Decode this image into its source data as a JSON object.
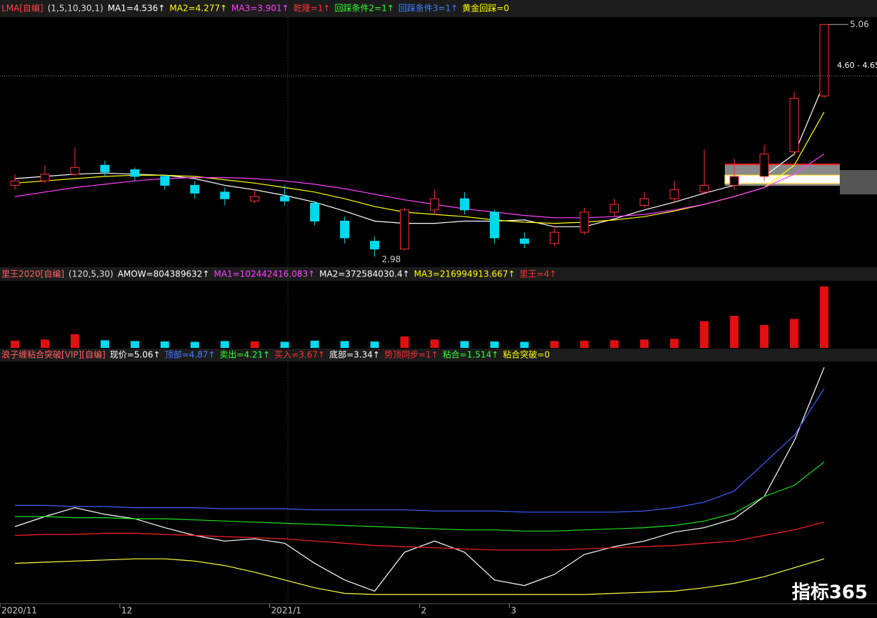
{
  "chart_data": [
    {
      "type": "candlestick",
      "indicator": "LMA[自编]",
      "params": "(1,5,10,30,1)",
      "readouts": [
        {
          "text": "MA1=4.536↑",
          "color": "#ffffff"
        },
        {
          "text": "MA2=4.277↑",
          "color": "#ffff00"
        },
        {
          "text": "MA3=3.901↑",
          "color": "#ff40ff"
        },
        {
          "text": "乾隆=1↑",
          "color": "#ff3030"
        },
        {
          "text": "回踩条件2=1↑",
          "color": "#30ff30"
        },
        {
          "text": "回踩条件3=1↑",
          "color": "#4080ff"
        },
        {
          "text": "黄金回踩=0",
          "color": "#ffff00"
        }
      ],
      "ylim": [
        2.9,
        5.1
      ],
      "open": [
        3.62,
        3.66,
        3.72,
        3.8,
        3.76,
        3.7,
        3.62,
        3.56,
        3.48,
        3.52,
        3.46,
        3.3,
        3.12,
        3.05,
        3.4,
        3.5,
        3.38,
        3.14,
        3.1,
        3.2,
        3.38,
        3.44,
        3.5,
        3.56,
        3.62,
        3.7,
        3.92,
        4.42
      ],
      "high": [
        3.72,
        3.8,
        3.96,
        3.84,
        3.78,
        3.72,
        3.66,
        3.6,
        3.58,
        3.62,
        3.48,
        3.34,
        3.16,
        3.42,
        3.58,
        3.56,
        3.4,
        3.2,
        3.24,
        3.42,
        3.5,
        3.56,
        3.66,
        3.94,
        3.86,
        3.98,
        4.46,
        5.06
      ],
      "low": [
        3.58,
        3.64,
        3.7,
        3.7,
        3.66,
        3.58,
        3.5,
        3.44,
        3.46,
        3.44,
        3.26,
        3.1,
        2.98,
        3.04,
        3.36,
        3.36,
        3.1,
        3.06,
        3.08,
        3.18,
        3.34,
        3.42,
        3.46,
        3.54,
        3.58,
        3.66,
        3.88,
        4.4
      ],
      "close": [
        3.66,
        3.72,
        3.78,
        3.74,
        3.7,
        3.62,
        3.55,
        3.5,
        3.52,
        3.48,
        3.3,
        3.15,
        3.05,
        3.4,
        3.5,
        3.4,
        3.15,
        3.1,
        3.2,
        3.38,
        3.45,
        3.5,
        3.58,
        3.62,
        3.7,
        3.9,
        4.4,
        5.06
      ],
      "lines": [
        {
          "color": "#ffffff",
          "values": [
            3.68,
            3.7,
            3.72,
            3.73,
            3.72,
            3.71,
            3.68,
            3.62,
            3.58,
            3.53,
            3.47,
            3.39,
            3.3,
            3.28,
            3.28,
            3.3,
            3.3,
            3.31,
            3.25,
            3.25,
            3.32,
            3.4,
            3.47,
            3.55,
            3.62,
            3.7,
            3.9,
            4.536
          ]
        },
        {
          "color": "#ffff00",
          "values": [
            3.64,
            3.66,
            3.68,
            3.7,
            3.71,
            3.71,
            3.7,
            3.67,
            3.64,
            3.6,
            3.56,
            3.5,
            3.43,
            3.38,
            3.36,
            3.34,
            3.31,
            3.29,
            3.28,
            3.29,
            3.31,
            3.34,
            3.39,
            3.45,
            3.52,
            3.6,
            3.8,
            4.277
          ]
        },
        {
          "color": "#ff40ff",
          "values": [
            3.52,
            3.56,
            3.6,
            3.63,
            3.66,
            3.68,
            3.69,
            3.69,
            3.68,
            3.66,
            3.63,
            3.59,
            3.54,
            3.49,
            3.45,
            3.41,
            3.38,
            3.35,
            3.33,
            3.33,
            3.34,
            3.36,
            3.4,
            3.45,
            3.52,
            3.6,
            3.72,
            3.901
          ]
        }
      ],
      "annotations": [
        {
          "value": 2.98,
          "label": "2.98"
        },
        {
          "value": 5.06,
          "label": "5.06"
        },
        {
          "value": 4.6,
          "label": "4.60 - 4.65"
        }
      ]
    },
    {
      "type": "bar",
      "indicator": "里王2020[自编]",
      "params": "(120,5,30)",
      "readouts": [
        {
          "text": "AMOW=804389632↑",
          "color": "#ffffff"
        },
        {
          "text": "MA1=102442416.083↑",
          "color": "#ff40ff"
        },
        {
          "text": "MA2=372584030.4↑",
          "color": "#ffffff"
        },
        {
          "text": "MA3=216994913.667↑",
          "color": "#ffff00"
        },
        {
          "text": "里王=4↑",
          "color": "#ff3030"
        }
      ],
      "ylim": [
        0,
        850000000
      ],
      "values": [
        95000000,
        110000000,
        180000000,
        100000000,
        90000000,
        85000000,
        80000000,
        90000000,
        85000000,
        80000000,
        95000000,
        90000000,
        85000000,
        150000000,
        110000000,
        90000000,
        85000000,
        80000000,
        90000000,
        95000000,
        100000000,
        110000000,
        120000000,
        350000000,
        420000000,
        300000000,
        380000000,
        804389632
      ]
    },
    {
      "type": "line",
      "indicator": "浪子缠粘合突破[VIP][自编]",
      "readouts": [
        {
          "text": "现价=5.06↑",
          "color": "#ffffff"
        },
        {
          "text": "顶部=4.87↑",
          "color": "#4080ff"
        },
        {
          "text": "卖出=4.21↑",
          "color": "#30ff30"
        },
        {
          "text": "买入=3.67↑",
          "color": "#ff3030"
        },
        {
          "text": "底部=3.34↑",
          "color": "#ffffff"
        },
        {
          "text": "势顶同步=1↑",
          "color": "#ff3030"
        },
        {
          "text": "粘合=1.514↑",
          "color": "#30ff30"
        },
        {
          "text": "粘合突破=0",
          "color": "#ffff00"
        }
      ],
      "ylim": [
        2.95,
        5.1
      ],
      "categories": [
        "2020/11",
        null,
        null,
        null,
        "12",
        null,
        null,
        null,
        null,
        "2021/1",
        null,
        null,
        null,
        null,
        "2",
        null,
        null,
        "3",
        null,
        null,
        null,
        null,
        null,
        null,
        null,
        null,
        null,
        null
      ],
      "series": [
        {
          "color": "#ffffff",
          "values": [
            3.63,
            3.72,
            3.8,
            3.74,
            3.7,
            3.62,
            3.55,
            3.5,
            3.52,
            3.48,
            3.3,
            3.15,
            3.05,
            3.4,
            3.5,
            3.4,
            3.15,
            3.1,
            3.2,
            3.38,
            3.45,
            3.5,
            3.58,
            3.62,
            3.7,
            3.9,
            4.4,
            5.06
          ]
        },
        {
          "color": "#4060ff",
          "values": [
            3.82,
            3.82,
            3.81,
            3.81,
            3.8,
            3.8,
            3.8,
            3.79,
            3.79,
            3.79,
            3.78,
            3.78,
            3.78,
            3.78,
            3.77,
            3.77,
            3.77,
            3.76,
            3.76,
            3.76,
            3.76,
            3.77,
            3.8,
            3.85,
            3.95,
            4.2,
            4.45,
            4.87
          ]
        },
        {
          "color": "#20e020",
          "values": [
            3.72,
            3.72,
            3.71,
            3.71,
            3.7,
            3.7,
            3.69,
            3.68,
            3.67,
            3.66,
            3.65,
            3.64,
            3.63,
            3.62,
            3.61,
            3.6,
            3.6,
            3.59,
            3.59,
            3.6,
            3.61,
            3.62,
            3.64,
            3.68,
            3.75,
            3.9,
            4.0,
            4.21
          ]
        },
        {
          "color": "#ff2020",
          "values": [
            3.55,
            3.56,
            3.56,
            3.57,
            3.57,
            3.56,
            3.55,
            3.54,
            3.53,
            3.52,
            3.5,
            3.48,
            3.46,
            3.45,
            3.44,
            3.43,
            3.42,
            3.42,
            3.42,
            3.43,
            3.44,
            3.45,
            3.46,
            3.48,
            3.5,
            3.55,
            3.6,
            3.67
          ]
        },
        {
          "color": "#ffff40",
          "values": [
            3.3,
            3.31,
            3.32,
            3.33,
            3.34,
            3.34,
            3.32,
            3.28,
            3.22,
            3.15,
            3.08,
            3.03,
            3.02,
            3.02,
            3.02,
            3.02,
            3.02,
            3.02,
            3.02,
            3.02,
            3.03,
            3.04,
            3.05,
            3.08,
            3.12,
            3.18,
            3.26,
            3.34
          ]
        }
      ]
    }
  ],
  "watermark": "指标365"
}
